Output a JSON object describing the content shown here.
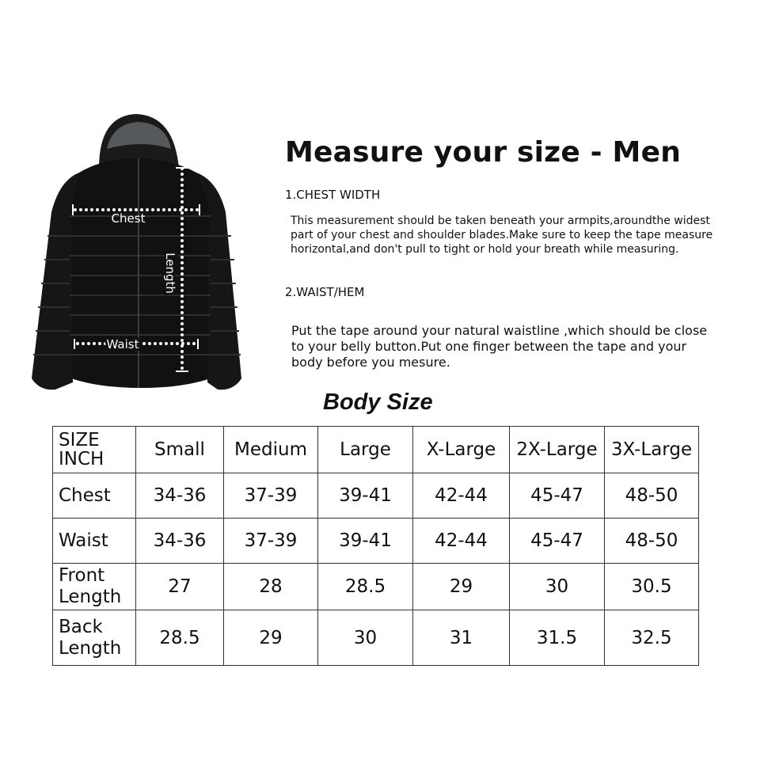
{
  "image": {
    "labels": {
      "chest": "Chest",
      "length": "Length",
      "waist": "Waist"
    },
    "jacket_color": "#111111"
  },
  "title": "Measure your size - Men",
  "sections": [
    {
      "heading": "1.CHEST WIDTH",
      "lines": [
        "This measurement should be taken beneath your armpits,aroundthe widest",
        "part of your chest and shoulder blades.Make sure to keep the tape measure",
        "horizontal,and don't pull to tight or hold your breath while measuring."
      ]
    },
    {
      "heading": "2.WAIST/HEM",
      "lines": [
        "Put the tape around your natural waistline ,which should be close",
        "to your belly button.Put one finger between the tape and your",
        "body before you mesure."
      ]
    }
  ],
  "table_title": "Body Size",
  "table": {
    "corner": [
      "SIZE",
      "INCH"
    ],
    "columns": [
      "Small",
      "Medium",
      "Large",
      "X-Large",
      "2X-Large",
      "3X-Large"
    ],
    "rows": [
      {
        "label": [
          "Chest"
        ],
        "values": [
          "34-36",
          "37-39",
          "39-41",
          "42-44",
          "45-47",
          "48-50"
        ]
      },
      {
        "label": [
          "Waist"
        ],
        "values": [
          "34-36",
          "37-39",
          "39-41",
          "42-44",
          "45-47",
          "48-50"
        ]
      },
      {
        "label": [
          "Front",
          "Length"
        ],
        "values": [
          "27",
          "28",
          "28.5",
          "29",
          "30",
          "30.5"
        ]
      },
      {
        "label": [
          "Back",
          "Length"
        ],
        "values": [
          "28.5",
          "29",
          "30",
          "31",
          "31.5",
          "32.5"
        ]
      }
    ]
  }
}
